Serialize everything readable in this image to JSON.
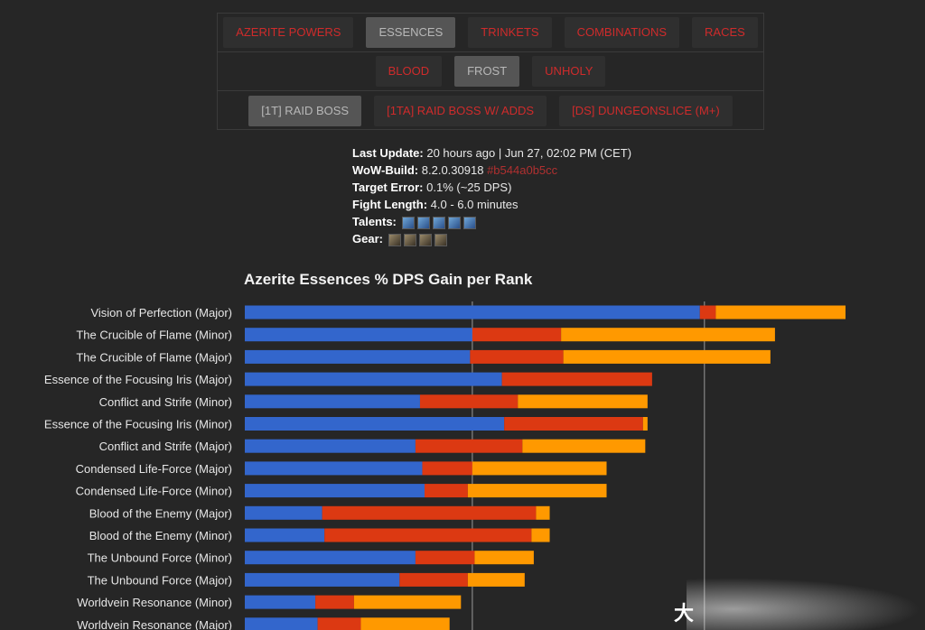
{
  "nav": {
    "row1": [
      {
        "label": "AZERITE POWERS",
        "active": false
      },
      {
        "label": "ESSENCES",
        "active": true
      },
      {
        "label": "TRINKETS",
        "active": false
      },
      {
        "label": "COMBINATIONS",
        "active": false
      },
      {
        "label": "RACES",
        "active": false
      }
    ],
    "row2": [
      {
        "label": "BLOOD",
        "active": false
      },
      {
        "label": "FROST",
        "active": true
      },
      {
        "label": "UNHOLY",
        "active": false
      }
    ],
    "row3": [
      {
        "label": "[1T] RAID BOSS",
        "active": true
      },
      {
        "label": "[1TA] RAID BOSS W/ ADDS",
        "active": false
      },
      {
        "label": "[DS] DUNGEONSLICE (M+)",
        "active": false
      }
    ]
  },
  "info": {
    "last_update_key": "Last Update:",
    "last_update_value": "20 hours ago | Jun 27, 02:02 PM (CET)",
    "build_key": "WoW-Build:",
    "build_value": "8.2.0.30918",
    "build_hash": "#b544a0b5cc",
    "target_error_key": "Target Error:",
    "target_error_value": "0.1% (~25 DPS)",
    "fight_length_key": "Fight Length:",
    "fight_length_value": "4.0 - 6.0 minutes",
    "talents_key": "Talents:",
    "gear_key": "Gear:"
  },
  "watermark": "大",
  "chart_data": {
    "type": "bar",
    "orientation": "horizontal",
    "stacked": true,
    "title": "Azerite Essences % DPS Gain per Rank",
    "colors": [
      "#3366cc",
      "#dc3912",
      "#ff9900"
    ],
    "xlim": [
      0,
      2.64
    ],
    "reference_lines": [
      1.0,
      2.02
    ],
    "categories": [
      "Vision of Perfection (Major)",
      "The Crucible of Flame (Minor)",
      "The Crucible of Flame (Major)",
      "Essence of the Focusing Iris (Major)",
      "Conflict and Strife (Minor)",
      "Essence of the Focusing Iris (Minor)",
      "Conflict and Strife (Major)",
      "Condensed Life-Force (Major)",
      "Condensed Life-Force (Minor)",
      "Blood of the Enemy (Major)",
      "Blood of the Enemy (Minor)",
      "The Unbound Force (Minor)",
      "The Unbound Force (Major)",
      "Worldvein Resonance (Minor)",
      "Worldvein Resonance (Major)"
    ],
    "series": [
      {
        "values": [
          2.0,
          1.0,
          0.99,
          1.13,
          0.77,
          1.14,
          0.75,
          0.78,
          0.79,
          0.34,
          0.35,
          0.75,
          0.68,
          0.31,
          0.32
        ]
      },
      {
        "values": [
          0.07,
          0.39,
          0.41,
          0.66,
          0.43,
          0.61,
          0.47,
          0.22,
          0.19,
          0.94,
          0.91,
          0.26,
          0.3,
          0.17,
          0.19
        ]
      },
      {
        "values": [
          0.57,
          0.94,
          0.91,
          0.0,
          0.57,
          0.02,
          0.54,
          0.59,
          0.61,
          0.06,
          0.08,
          0.26,
          0.25,
          0.47,
          0.39
        ]
      }
    ]
  }
}
